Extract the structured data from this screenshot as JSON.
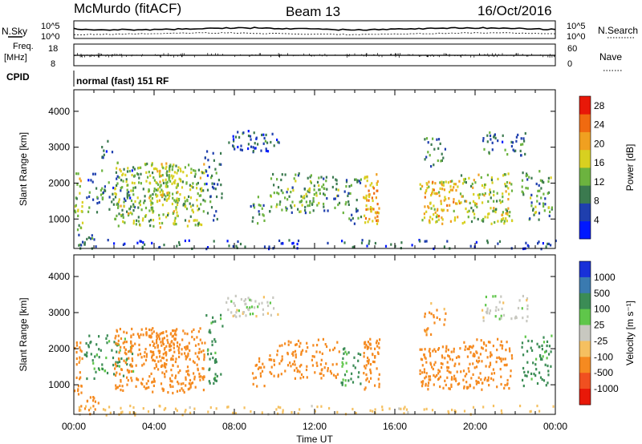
{
  "header": {
    "station": "McMurdo (fitACF)",
    "beam": "Beam 13",
    "date": "16/Oct/2016"
  },
  "strip": {
    "nsky_label": "N.Sky",
    "nsearch_label": "N.Search",
    "noise_ticks": [
      "10^5",
      "10^0"
    ],
    "freq_label": "Freq.",
    "freq_unit": "[MHz]",
    "freq_ticks": [
      18,
      8
    ],
    "nave_label": "Nave",
    "nave_ticks": [
      60,
      0
    ],
    "cpid_label": "CPID",
    "cpid_value": "normal (fast) 151 RF"
  },
  "chart_data": [
    {
      "type": "heatmap",
      "name": "power",
      "ylabel": "Slant Range [km]",
      "ylim": [
        180,
        4600
      ],
      "yticks": [
        1000,
        2000,
        3000,
        4000
      ],
      "xticks": [
        "00:00",
        "04:00",
        "08:00",
        "12:00",
        "16:00",
        "20:00",
        "00:00"
      ],
      "colorbar": {
        "label": "Power [dB]",
        "ticks": [
          4,
          8,
          12,
          16,
          20,
          24,
          28
        ],
        "range": [
          0,
          30
        ],
        "colors": [
          "#0018ff",
          "#1f3fae",
          "#3b7a4f",
          "#6cb33f",
          "#d8d020",
          "#f0a020",
          "#f06a10",
          "#e81808"
        ]
      },
      "regions": [
        {
          "t0": 0.0,
          "t1": 0.4,
          "r0": 700,
          "r1": 2400,
          "dens": 0.6,
          "v": 15
        },
        {
          "t0": 0.2,
          "t1": 1.2,
          "r0": 190,
          "r1": 700,
          "dens": 0.5,
          "v": 8
        },
        {
          "t0": 0.5,
          "t1": 3.0,
          "r0": 1200,
          "r1": 2400,
          "dens": 0.35,
          "v": 8
        },
        {
          "t0": 1.3,
          "t1": 2.0,
          "r0": 2700,
          "r1": 3200,
          "dens": 0.4,
          "v": 7
        },
        {
          "t0": 2.0,
          "t1": 6.5,
          "r0": 800,
          "r1": 2600,
          "dens": 0.6,
          "v": 14
        },
        {
          "t0": 3.7,
          "t1": 5.2,
          "r0": 1500,
          "r1": 2600,
          "dens": 0.55,
          "v": 16
        },
        {
          "t0": 6.5,
          "t1": 7.4,
          "r0": 1000,
          "r1": 3000,
          "dens": 0.35,
          "v": 8
        },
        {
          "t0": 7.5,
          "t1": 10.2,
          "r0": 2900,
          "r1": 3500,
          "dens": 0.5,
          "v": 7
        },
        {
          "t0": 8.7,
          "t1": 9.5,
          "r0": 900,
          "r1": 1800,
          "dens": 0.4,
          "v": 10
        },
        {
          "t0": 9.7,
          "t1": 13.2,
          "r0": 1200,
          "r1": 2300,
          "dens": 0.45,
          "v": 11
        },
        {
          "t0": 11.2,
          "t1": 12.2,
          "r0": 1400,
          "r1": 2000,
          "dens": 0.6,
          "v": 14
        },
        {
          "t0": 13.3,
          "t1": 14.3,
          "r0": 900,
          "r1": 2200,
          "dens": 0.4,
          "v": 9
        },
        {
          "t0": 14.4,
          "t1": 15.2,
          "r0": 900,
          "r1": 2300,
          "dens": 0.85,
          "v": 20
        },
        {
          "t0": 17.2,
          "t1": 19.2,
          "r0": 900,
          "r1": 2100,
          "dens": 0.7,
          "v": 19
        },
        {
          "t0": 17.4,
          "t1": 18.5,
          "r0": 2400,
          "r1": 3300,
          "dens": 0.35,
          "v": 9
        },
        {
          "t0": 19.2,
          "t1": 21.8,
          "r0": 900,
          "r1": 2300,
          "dens": 0.55,
          "v": 15
        },
        {
          "t0": 20.3,
          "t1": 22.6,
          "r0": 2800,
          "r1": 3500,
          "dens": 0.4,
          "v": 8
        },
        {
          "t0": 22.3,
          "t1": 23.8,
          "r0": 1000,
          "r1": 2400,
          "dens": 0.45,
          "v": 11
        },
        {
          "t0": 0.0,
          "t1": 24.0,
          "r0": 190,
          "r1": 450,
          "dens": 0.25,
          "v": 6
        }
      ]
    },
    {
      "type": "heatmap",
      "name": "velocity",
      "ylabel": "Slant Range [km]",
      "xlabel": "Time UT",
      "ylim": [
        180,
        4600
      ],
      "yticks": [
        1000,
        2000,
        3000,
        4000
      ],
      "xticks": [
        "00:00",
        "04:00",
        "08:00",
        "12:00",
        "16:00",
        "20:00",
        "00:00"
      ],
      "colorbar": {
        "label": "Velocity [m s⁻¹]",
        "ticks": [
          "1000",
          "500",
          "100",
          "25",
          "-25",
          "-100",
          "-500",
          "-1000"
        ],
        "colors": [
          "#1830d8",
          "#3a7ab0",
          "#3b8c55",
          "#5fc64a",
          "#c8c8c0",
          "#f5c060",
          "#f58a20",
          "#f05020",
          "#e81808"
        ]
      },
      "regions": [
        {
          "t0": 0.0,
          "t1": 0.4,
          "r0": 700,
          "r1": 2400,
          "dens": 0.6,
          "v": -150
        },
        {
          "t0": 0.2,
          "t1": 1.2,
          "r0": 190,
          "r1": 700,
          "dens": 0.5,
          "v": -200
        },
        {
          "t0": 0.5,
          "t1": 3.0,
          "r0": 1200,
          "r1": 2400,
          "dens": 0.35,
          "v": 120
        },
        {
          "t0": 2.0,
          "t1": 6.5,
          "r0": 800,
          "r1": 2600,
          "dens": 0.6,
          "v": -250
        },
        {
          "t0": 3.7,
          "t1": 5.2,
          "r0": 1500,
          "r1": 2600,
          "dens": 0.55,
          "v": -300
        },
        {
          "t0": 6.5,
          "t1": 7.4,
          "r0": 1000,
          "r1": 3000,
          "dens": 0.35,
          "v": 150
        },
        {
          "t0": 7.5,
          "t1": 10.2,
          "r0": 2900,
          "r1": 3500,
          "dens": 0.5,
          "v": 0
        },
        {
          "t0": 8.7,
          "t1": 9.5,
          "r0": 900,
          "r1": 1800,
          "dens": 0.4,
          "v": -200
        },
        {
          "t0": 9.7,
          "t1": 13.2,
          "r0": 1200,
          "r1": 2300,
          "dens": 0.45,
          "v": -220
        },
        {
          "t0": 13.3,
          "t1": 14.3,
          "r0": 900,
          "r1": 2200,
          "dens": 0.4,
          "v": 120
        },
        {
          "t0": 14.4,
          "t1": 15.2,
          "r0": 900,
          "r1": 2300,
          "dens": 0.85,
          "v": -250
        },
        {
          "t0": 17.2,
          "t1": 19.2,
          "r0": 900,
          "r1": 2100,
          "dens": 0.7,
          "v": -300
        },
        {
          "t0": 17.4,
          "t1": 18.5,
          "r0": 2400,
          "r1": 3300,
          "dens": 0.35,
          "v": -150
        },
        {
          "t0": 19.2,
          "t1": 21.8,
          "r0": 900,
          "r1": 2300,
          "dens": 0.55,
          "v": -180
        },
        {
          "t0": 20.3,
          "t1": 22.6,
          "r0": 2800,
          "r1": 3500,
          "dens": 0.4,
          "v": 0
        },
        {
          "t0": 22.3,
          "t1": 23.8,
          "r0": 1000,
          "r1": 2400,
          "dens": 0.45,
          "v": 150
        },
        {
          "t0": 0.0,
          "t1": 24.0,
          "r0": 190,
          "r1": 450,
          "dens": 0.25,
          "v": -60
        }
      ]
    }
  ]
}
